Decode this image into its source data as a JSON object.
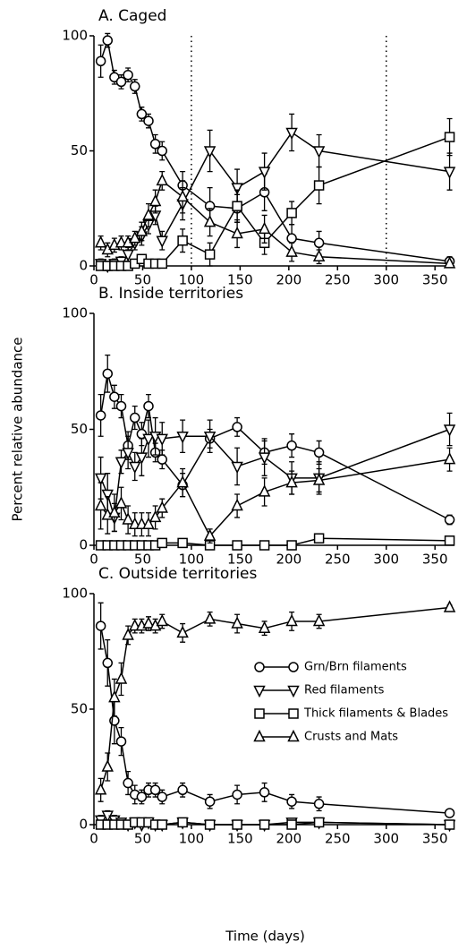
{
  "chart_data": [
    {
      "type": "line",
      "title": "A. Caged",
      "x": [
        7,
        14,
        21,
        28,
        35,
        42,
        49,
        56,
        63,
        70,
        91,
        119,
        147,
        175,
        203,
        231,
        365
      ],
      "xlim": [
        0,
        370
      ],
      "xticks": [
        0,
        50,
        100,
        150,
        200,
        250,
        300,
        350
      ],
      "ylim": [
        0,
        100
      ],
      "yticks": [
        0,
        50,
        100
      ],
      "vlines": [
        100,
        300
      ],
      "series": [
        {
          "marker": "circle",
          "color": "#000000",
          "values": [
            89,
            98,
            82,
            80,
            83,
            78,
            66,
            63,
            53,
            50,
            35,
            26,
            25,
            32,
            12,
            10,
            2
          ],
          "errors": [
            7,
            3,
            3,
            3,
            3,
            3,
            3,
            3,
            4,
            4,
            6,
            8,
            6,
            8,
            6,
            5,
            2
          ]
        },
        {
          "marker": "triangle-down",
          "color": "#000000",
          "values": [
            1,
            0,
            1,
            2,
            5,
            10,
            13,
            18,
            22,
            11,
            27,
            50,
            34,
            41,
            58,
            50,
            41
          ],
          "errors": [
            2,
            2,
            2,
            2,
            3,
            3,
            4,
            4,
            4,
            4,
            7,
            9,
            8,
            8,
            8,
            7,
            8
          ]
        },
        {
          "marker": "square",
          "color": "#000000",
          "values": [
            0,
            0,
            0,
            0,
            0,
            1,
            3,
            1,
            1,
            1,
            11,
            5,
            26,
            10,
            23,
            35,
            56
          ],
          "errors": [
            1,
            1,
            1,
            1,
            1,
            1,
            1,
            1,
            1,
            1,
            5,
            5,
            7,
            5,
            5,
            8,
            8
          ]
        },
        {
          "marker": "triangle",
          "color": "#000000",
          "values": [
            10,
            7,
            9,
            10,
            10,
            12,
            15,
            22,
            28,
            37,
            30,
            19,
            14,
            16,
            6,
            4,
            1
          ],
          "errors": [
            3,
            3,
            3,
            3,
            3,
            3,
            4,
            5,
            5,
            4,
            7,
            6,
            6,
            6,
            4,
            3,
            1
          ]
        }
      ]
    },
    {
      "type": "line",
      "title": "B. Inside territories",
      "ylabel": "Percent relative abundance",
      "x": [
        7,
        14,
        21,
        28,
        35,
        42,
        49,
        56,
        63,
        70,
        91,
        119,
        147,
        175,
        203,
        231,
        365
      ],
      "xlim": [
        0,
        370
      ],
      "xticks": [
        0,
        50,
        100,
        150,
        200,
        250,
        300,
        350
      ],
      "ylim": [
        0,
        100
      ],
      "yticks": [
        0,
        50,
        100
      ],
      "series": [
        {
          "marker": "circle",
          "color": "#000000",
          "values": [
            56,
            74,
            64,
            60,
            43,
            55,
            48,
            60,
            40,
            37,
            26,
            46,
            51,
            40,
            43,
            40,
            11
          ],
          "errors": [
            9,
            8,
            5,
            5,
            6,
            5,
            5,
            5,
            4,
            4,
            5,
            4,
            4,
            5,
            5,
            5,
            2
          ]
        },
        {
          "marker": "triangle-down",
          "color": "#000000",
          "values": [
            29,
            22,
            12,
            36,
            40,
            34,
            38,
            46,
            47,
            46,
            47,
            47,
            34,
            38,
            29,
            29,
            50
          ],
          "errors": [
            9,
            9,
            6,
            5,
            7,
            6,
            8,
            8,
            8,
            7,
            7,
            7,
            8,
            8,
            7,
            7,
            7
          ]
        },
        {
          "marker": "square",
          "color": "#000000",
          "values": [
            0,
            0,
            0,
            0,
            0,
            0,
            0,
            0,
            0,
            1,
            1,
            0,
            0,
            0,
            0,
            3,
            2
          ],
          "errors": [
            1,
            1,
            1,
            1,
            1,
            1,
            1,
            1,
            1,
            1,
            1,
            1,
            1,
            1,
            1,
            1,
            1
          ]
        },
        {
          "marker": "triangle",
          "color": "#000000",
          "values": [
            17,
            13,
            14,
            18,
            11,
            9,
            9,
            9,
            12,
            16,
            27,
            4,
            17,
            23,
            27,
            28,
            37
          ],
          "errors": [
            10,
            8,
            8,
            7,
            6,
            5,
            5,
            5,
            5,
            4,
            6,
            3,
            5,
            6,
            5,
            5,
            5
          ]
        }
      ]
    },
    {
      "type": "line",
      "title": "C. Outside territories",
      "xlabel": "Time (days)",
      "legend": "right",
      "x": [
        7,
        14,
        21,
        28,
        35,
        42,
        49,
        56,
        63,
        70,
        91,
        119,
        147,
        175,
        203,
        231,
        365
      ],
      "xlim": [
        0,
        370
      ],
      "xticks": [
        0,
        50,
        100,
        150,
        200,
        250,
        300,
        350
      ],
      "ylim": [
        0,
        100
      ],
      "yticks": [
        0,
        50,
        100
      ],
      "series": [
        {
          "name": "Grn/Brn filaments",
          "marker": "circle",
          "color": "#000000",
          "values": [
            86,
            70,
            45,
            36,
            18,
            13,
            12,
            15,
            15,
            12,
            15,
            10,
            13,
            14,
            10,
            9,
            5
          ],
          "errors": [
            10,
            10,
            10,
            6,
            5,
            4,
            3,
            3,
            3,
            3,
            3,
            3,
            4,
            4,
            3,
            3,
            1
          ]
        },
        {
          "name": "Red filaments",
          "marker": "triangle-down",
          "color": "#000000",
          "values": [
            2,
            4,
            2,
            1,
            0,
            1,
            0,
            1,
            0,
            0,
            1,
            0,
            0,
            0,
            1,
            1,
            0
          ],
          "errors": [
            2,
            2,
            2,
            1,
            1,
            1,
            1,
            1,
            1,
            1,
            1,
            1,
            1,
            1,
            1,
            1,
            1
          ]
        },
        {
          "name": "Thick filaments & Blades",
          "marker": "square",
          "color": "#000000",
          "values": [
            0,
            0,
            0,
            0,
            0,
            1,
            1,
            1,
            0,
            0,
            1,
            0,
            0,
            0,
            0,
            1,
            0
          ],
          "errors": [
            1,
            1,
            1,
            1,
            1,
            1,
            1,
            1,
            1,
            1,
            1,
            1,
            1,
            1,
            1,
            1,
            1
          ]
        },
        {
          "name": "Crusts and Mats",
          "marker": "triangle",
          "color": "#000000",
          "values": [
            15,
            25,
            55,
            63,
            82,
            86,
            86,
            87,
            86,
            88,
            83,
            89,
            87,
            85,
            88,
            88,
            94
          ],
          "errors": [
            5,
            6,
            8,
            7,
            4,
            3,
            3,
            3,
            3,
            3,
            4,
            3,
            4,
            3,
            4,
            3,
            1
          ]
        }
      ]
    }
  ]
}
